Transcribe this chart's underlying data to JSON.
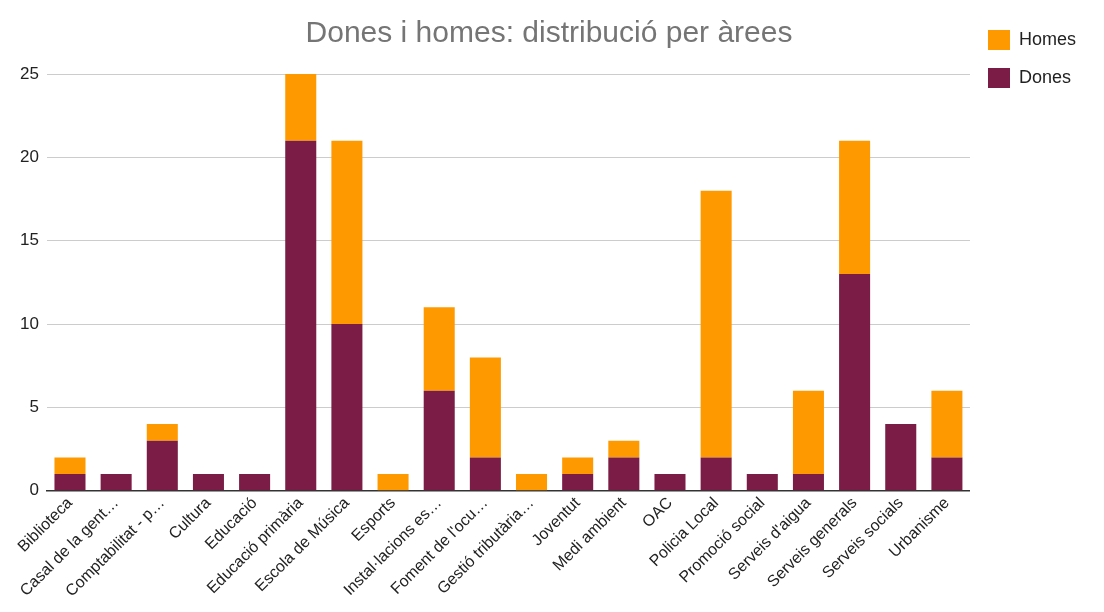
{
  "chart_data": {
    "type": "bar",
    "title": "Dones i homes: distribució per àrees",
    "stacked": true,
    "legend": "top right",
    "grid": "y",
    "categories": [
      "Biblioteca",
      "Casal de la gent…",
      "Comptabilitat - p…",
      "Cultura",
      "Educació",
      "Educació primària",
      "Escola de Música",
      "Esports",
      "Instal·lacions es…",
      "Foment de l'ocu…",
      "Gestió tributària…",
      "Joventut",
      "Medi ambient",
      "OAC",
      "Policia Local",
      "Promoció social",
      "Serveis d'aigua",
      "Serveis generals",
      "Serveis socials",
      "Urbanisme"
    ],
    "ylim": [
      0,
      25
    ],
    "yticks": [
      0,
      5,
      10,
      15,
      20,
      25
    ],
    "series": [
      {
        "name": "Dones",
        "color": "#7a1c45",
        "values": [
          1,
          1,
          3,
          1,
          1,
          21,
          10,
          0,
          6,
          2,
          0,
          1,
          2,
          1,
          2,
          1,
          1,
          13,
          4,
          2
        ]
      },
      {
        "name": "Homes",
        "color": "#ff9900",
        "values": [
          1,
          0,
          1,
          0,
          0,
          4,
          11,
          1,
          5,
          6,
          1,
          1,
          1,
          0,
          16,
          0,
          5,
          8,
          0,
          4
        ]
      }
    ]
  }
}
